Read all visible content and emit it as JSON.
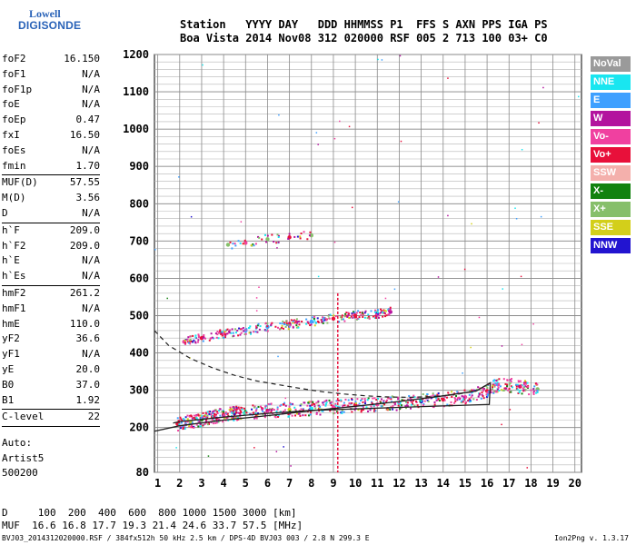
{
  "logo": {
    "line1": "Lowell",
    "line2": "DIGISONDE"
  },
  "header": {
    "line1": "Station   YYYY DAY   DDD HHMMSS P1  FFS S AXN PPS IGA PS",
    "line2": "Boa Vista 2014 Nov08 312 020000 RSF 005 2 713 100 03+ C0"
  },
  "params": {
    "group1": [
      {
        "label": "foF2",
        "value": "16.150"
      },
      {
        "label": "foF1",
        "value": "N/A"
      },
      {
        "label": "foF1p",
        "value": "N/A"
      },
      {
        "label": "foE",
        "value": "N/A"
      },
      {
        "label": "foEp",
        "value": "0.47"
      },
      {
        "label": "fxI",
        "value": "16.50"
      },
      {
        "label": "foEs",
        "value": "N/A"
      },
      {
        "label": "fmin",
        "value": "1.70"
      }
    ],
    "group2": [
      {
        "label": "MUF(D)",
        "value": "57.55"
      },
      {
        "label": "M(D)",
        "value": "3.56"
      },
      {
        "label": "D",
        "value": "N/A"
      }
    ],
    "group3": [
      {
        "label": "h`F",
        "value": "209.0"
      },
      {
        "label": "h`F2",
        "value": "209.0"
      },
      {
        "label": "h`E",
        "value": "N/A"
      },
      {
        "label": "h`Es",
        "value": "N/A"
      }
    ],
    "group4": [
      {
        "label": "hmF2",
        "value": "261.2"
      },
      {
        "label": "hmF1",
        "value": "N/A"
      },
      {
        "label": "hmE",
        "value": "110.0"
      },
      {
        "label": "yF2",
        "value": "36.6"
      },
      {
        "label": "yF1",
        "value": "N/A"
      },
      {
        "label": "yE",
        "value": "20.0"
      },
      {
        "label": "B0",
        "value": "37.0"
      },
      {
        "label": "B1",
        "value": "1.92"
      }
    ],
    "group5": [
      {
        "label": "C-level",
        "value": "22"
      }
    ]
  },
  "auto": {
    "line1": "Auto:",
    "line2": "Artist5",
    "line3": "500200"
  },
  "muf_table": {
    "row1": "D     100  200  400  600  800 1000 1500 3000 [km]",
    "row2": "MUF  16.6 16.8 17.7 19.3 21.4 24.6 33.7 57.5 [MHz]"
  },
  "footer": {
    "left": "BVJ03_2014312020000.RSF / 384fx512h 50 kHz 2.5 km / DPS-4D BVJ03 003 / 2.8 N 299.3 E",
    "right": "Ion2Png v. 1.3.17"
  },
  "legend": [
    {
      "label": "NoVal",
      "color": "#9a9a9a"
    },
    {
      "label": "NNE",
      "color": "#19e6f0"
    },
    {
      "label": "E",
      "color": "#3ea0ff"
    },
    {
      "label": "W",
      "color": "#b3139e"
    },
    {
      "label": "Vo-",
      "color": "#f040a0"
    },
    {
      "label": "Vo+",
      "color": "#e8103a"
    },
    {
      "label": "SSW",
      "color": "#f4b0ac"
    },
    {
      "label": "X-",
      "color": "#12820f"
    },
    {
      "label": "X+",
      "color": "#86bf6a"
    },
    {
      "label": "SSE",
      "color": "#d3cf1a"
    },
    {
      "label": "NNW",
      "color": "#2214d0"
    }
  ],
  "chart_data": {
    "type": "scatter",
    "x_ticks": [
      1,
      2,
      3,
      4,
      5,
      6,
      7,
      8,
      9,
      10,
      11,
      12,
      13,
      14,
      15,
      16,
      17,
      18,
      19,
      20
    ],
    "y_ticks": [
      80,
      200,
      300,
      400,
      500,
      600,
      700,
      800,
      900,
      1000,
      1100,
      1200
    ],
    "xlim": [
      0.85,
      20.3
    ],
    "ylim": [
      80,
      1200
    ],
    "grid": true,
    "legend_position": "right",
    "series": [
      {
        "points": [
          [
            1.9,
            210
          ],
          [
            2.5,
            215
          ],
          [
            3,
            222
          ],
          [
            3.5,
            228
          ],
          [
            4,
            234
          ],
          [
            4.5,
            238
          ],
          [
            5,
            242
          ],
          [
            6,
            245
          ],
          [
            7,
            248
          ],
          [
            8,
            251
          ],
          [
            9,
            255
          ],
          [
            10,
            260
          ],
          [
            11,
            262
          ],
          [
            12,
            266
          ],
          [
            13,
            270
          ],
          [
            14,
            275
          ],
          [
            15,
            282
          ],
          [
            16,
            298
          ],
          [
            16.5,
            315
          ],
          [
            17.5,
            310
          ],
          [
            18.3,
            303
          ]
        ]
      },
      {
        "points": [
          [
            2.2,
            430
          ],
          [
            3,
            440
          ],
          [
            4,
            452
          ],
          [
            5,
            460
          ],
          [
            6,
            470
          ],
          [
            7,
            476
          ],
          [
            8,
            484
          ],
          [
            9,
            492
          ],
          [
            10,
            500
          ],
          [
            11,
            505
          ],
          [
            11.6,
            510
          ]
        ]
      },
      {
        "points": [
          [
            4.2,
            690
          ],
          [
            5,
            695
          ],
          [
            6,
            705
          ],
          [
            7,
            710
          ],
          [
            8,
            715
          ]
        ]
      }
    ],
    "profile_dashed": {
      "x": [
        0.85,
        1.5,
        2.5,
        3.5,
        4.5,
        5.5,
        6.5,
        7.5,
        8.5,
        9.5,
        10.5,
        11.5,
        12.5,
        13.5,
        14.5,
        15.5,
        16.15
      ],
      "y": [
        460,
        420,
        385,
        360,
        340,
        325,
        315,
        305,
        296,
        290,
        285,
        282,
        281,
        283,
        288,
        298,
        320
      ]
    },
    "profile_solid": {
      "x": [
        0.85,
        2,
        4,
        6,
        8,
        10,
        12,
        14,
        15.5,
        16.15,
        16.1,
        14,
        12,
        10,
        8,
        6,
        4,
        2,
        1.7
      ],
      "y": [
        190,
        205,
        220,
        232,
        245,
        257,
        270,
        285,
        298,
        320,
        262,
        258,
        254,
        250,
        246,
        238,
        228,
        216,
        212
      ]
    }
  }
}
